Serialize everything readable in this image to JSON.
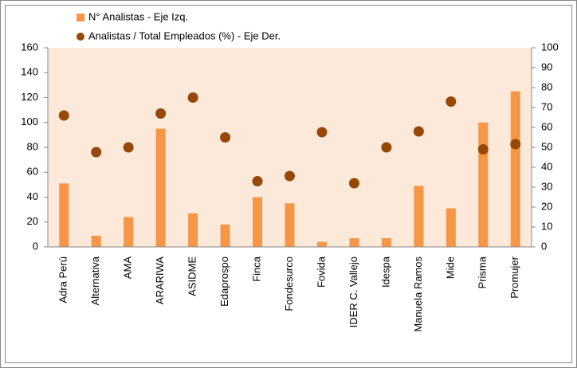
{
  "chart_data": {
    "type": "bar_scatter",
    "categories": [
      "Adra Perú",
      "Alternativa",
      "AMA",
      "ARARIWA",
      "ASIDME",
      "Edaprospo",
      "Finca",
      "Fondesurco",
      "Fovida",
      "IDER C. Vallejo",
      "Idespa",
      "Manuela Ramos",
      "Mide",
      "Prisma",
      "Promujer"
    ],
    "series": [
      {
        "name": "N° Analistas - Eje Izq.",
        "type": "bar",
        "color": "#f79646",
        "values": [
          51,
          9,
          24,
          95,
          27,
          18,
          40,
          35,
          4,
          7,
          7,
          49,
          31,
          100,
          125
        ]
      },
      {
        "name": "Analistas / Total Empleados (%) - Eje Der.",
        "type": "scatter",
        "axis": "y2",
        "color": "#974706",
        "values": [
          66,
          47.6,
          50,
          67,
          75,
          55,
          33,
          35.6,
          57.6,
          32,
          50,
          58,
          73,
          49,
          51.6
        ]
      }
    ],
    "ylim": [
      0,
      160
    ],
    "yticks": [
      0,
      20,
      40,
      60,
      80,
      100,
      120,
      140,
      160
    ],
    "y2lim": [
      0,
      100
    ],
    "y2ticks": [
      0,
      10,
      20,
      30,
      40,
      50,
      60,
      70,
      80,
      90,
      100
    ],
    "plot_background": "#fde9d9"
  }
}
